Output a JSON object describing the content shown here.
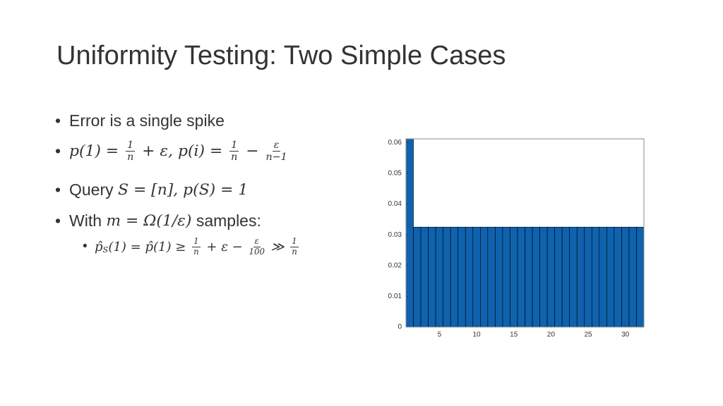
{
  "title": "Uniformity Testing: Two Simple Cases",
  "bullets": [
    {
      "parts": [
        "Error is a single spike"
      ]
    },
    {
      "parts": [
        {
          "m": "p(1) = "
        },
        {
          "num": "1",
          "den": "n"
        },
        {
          "m": " + ε, p(i) = "
        },
        {
          "num": "1",
          "den": "n"
        },
        {
          "m": " − "
        },
        {
          "num": "ε",
          "den": "n−1"
        }
      ]
    },
    {
      "parts": [
        "Query ",
        {
          "m": "S = [n], p(S) = 1"
        }
      ]
    },
    {
      "parts": [
        "With ",
        {
          "m": "m = Ω(1/ε)"
        },
        " samples:"
      ],
      "sub_bullets": [
        {
          "parts": [
            {
              "m": "p̂"
            },
            {
              "sub": "S"
            },
            {
              "m": "(1) = p̂(1) ≥ "
            },
            {
              "num": "1",
              "den": "n"
            },
            {
              "m": " + ε − "
            },
            {
              "num": "ε",
              "den": "100"
            },
            {
              "m": " ≫ "
            },
            {
              "num": "1",
              "den": "n"
            }
          ]
        }
      ]
    }
  ],
  "chart_data": {
    "type": "bar",
    "color": "#0f62ad",
    "x": [
      1,
      2,
      3,
      4,
      5,
      6,
      7,
      8,
      9,
      10,
      11,
      12,
      13,
      14,
      15,
      16,
      17,
      18,
      19,
      20,
      21,
      22,
      23,
      24,
      25,
      26,
      27,
      28,
      29,
      30,
      31,
      32
    ],
    "values": [
      0.0612,
      0.0325,
      0.0325,
      0.0325,
      0.0325,
      0.0325,
      0.0325,
      0.0325,
      0.0325,
      0.0325,
      0.0325,
      0.0325,
      0.0325,
      0.0325,
      0.0325,
      0.0325,
      0.0325,
      0.0325,
      0.0325,
      0.0325,
      0.0325,
      0.0325,
      0.0325,
      0.0325,
      0.0325,
      0.0325,
      0.0325,
      0.0325,
      0.0325,
      0.0325,
      0.0325,
      0.0325
    ],
    "xlim": [
      0.5,
      32.5
    ],
    "xticks": [
      5,
      10,
      15,
      20,
      25,
      30
    ],
    "ylim": [
      0,
      0.0612
    ],
    "yticks": [
      0,
      0.01,
      0.02,
      0.03,
      0.04,
      0.05,
      0.06
    ]
  }
}
